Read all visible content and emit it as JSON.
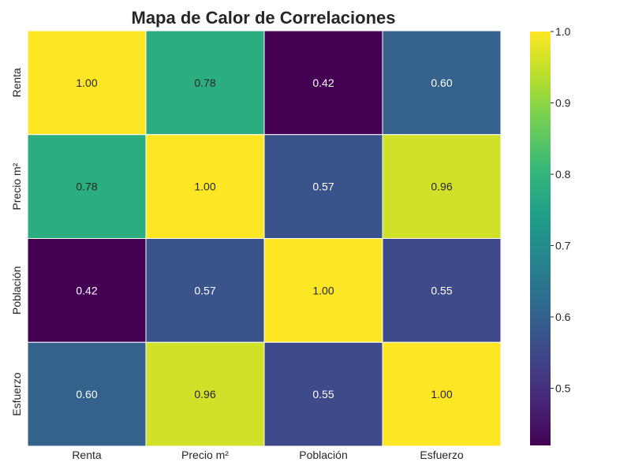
{
  "chart_data": {
    "type": "heatmap",
    "title": "Mapa de Calor de Correlaciones",
    "xlabel": "",
    "ylabel": "",
    "x_categories": [
      "Renta",
      "Precio m²",
      "Población",
      "Esfuerzo"
    ],
    "y_categories": [
      "Renta",
      "Precio m²",
      "Población",
      "Esfuerzo"
    ],
    "values": [
      [
        1.0,
        0.78,
        0.42,
        0.6
      ],
      [
        0.78,
        1.0,
        0.57,
        0.96
      ],
      [
        0.42,
        0.57,
        1.0,
        0.55
      ],
      [
        0.6,
        0.96,
        0.55,
        1.0
      ]
    ],
    "value_format": "0.00",
    "colormap": "viridis",
    "color_range": [
      0.42,
      1.0
    ],
    "colorbar_ticks": [
      "0.5",
      "0.6",
      "0.7",
      "0.8",
      "0.9",
      "1.0"
    ],
    "colorbar_tick_values": [
      0.5,
      0.6,
      0.7,
      0.8,
      0.9,
      1.0
    ],
    "grid": false,
    "colors": {
      "cell_border": "#ffffff",
      "text_dark": "#262626",
      "text_light": "#ffffff"
    }
  }
}
